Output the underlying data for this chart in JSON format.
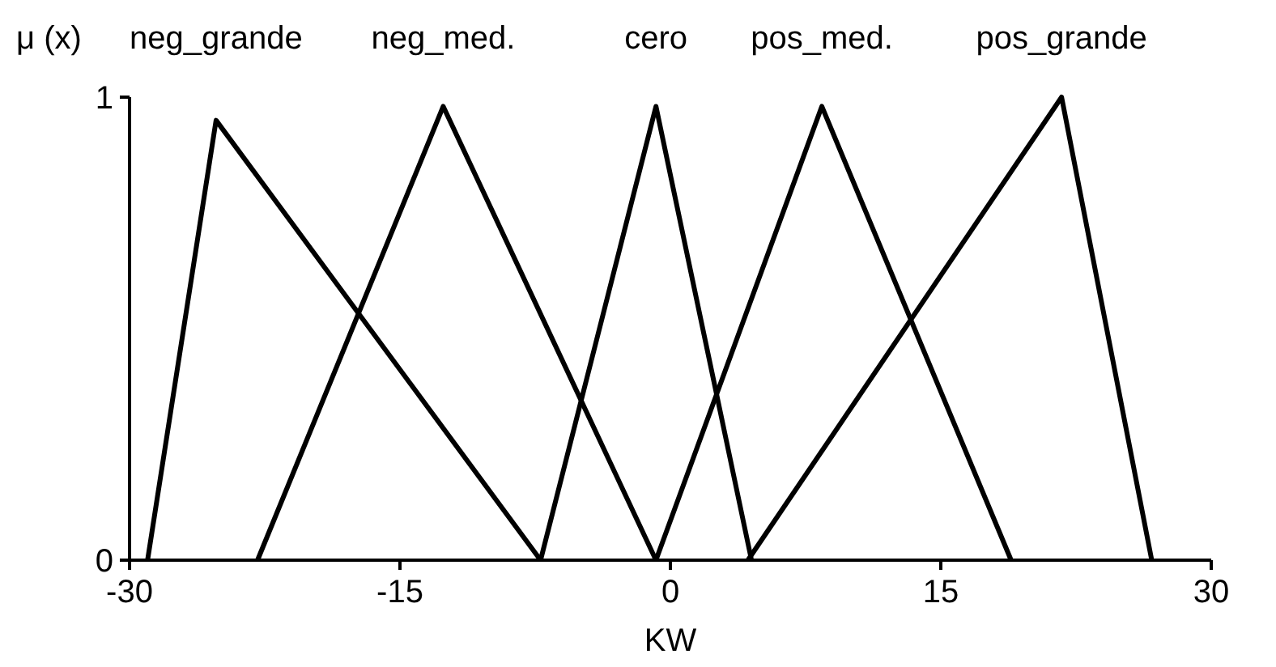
{
  "chart_data": {
    "type": "line",
    "xlabel": "KW",
    "ylabel": "μ (x)",
    "xlim": [
      -30,
      30
    ],
    "xticks": [
      -30,
      -15,
      0,
      15,
      30
    ],
    "ylim": [
      0,
      1
    ],
    "yticks": [
      0,
      1
    ],
    "grid": false,
    "legend": false,
    "marker": "none",
    "line_style": "solid",
    "series": [
      {
        "name": "neg_grande",
        "color": "#000000",
        "x": [
          -29,
          -25.2,
          -7.2
        ],
        "values": [
          0,
          0.95,
          0
        ]
      },
      {
        "name": "neg_med.",
        "color": "#000000",
        "x": [
          -22.9,
          -12.6,
          -0.8
        ],
        "values": [
          0,
          0.98,
          0
        ]
      },
      {
        "name": "cero",
        "color": "#000000",
        "x": [
          -7.2,
          -0.8,
          4.5
        ],
        "values": [
          0,
          0.98,
          0
        ]
      },
      {
        "name": "pos_med.",
        "color": "#000000",
        "x": [
          -0.8,
          8.4,
          18.9
        ],
        "values": [
          0,
          0.98,
          0
        ]
      },
      {
        "name": "pos_grande",
        "color": "#000000",
        "x": [
          4.3,
          21.7,
          26.7
        ],
        "values": [
          0,
          1,
          0
        ]
      }
    ]
  }
}
